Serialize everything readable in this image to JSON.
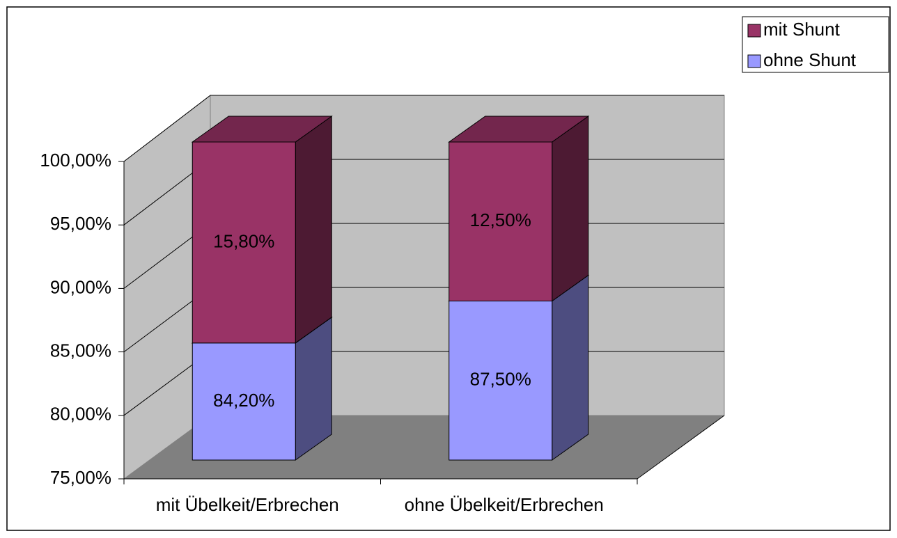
{
  "chart_data": {
    "type": "bar3d_stacked",
    "categories": [
      "mit Übelkeit/Erbrechen",
      "ohne Übelkeit/Erbrechen"
    ],
    "series": [
      {
        "name": "ohne Shunt",
        "color": "#9999ff",
        "values": [
          84.2,
          87.5
        ],
        "value_labels": [
          "84,20%",
          "87,50%"
        ]
      },
      {
        "name": "mit Shunt",
        "color": "#993366",
        "values": [
          15.8,
          12.5
        ],
        "value_labels": [
          "15,80%",
          "12,50%"
        ]
      }
    ],
    "ylim": [
      75,
      100
    ],
    "yticks": [
      {
        "value": 75,
        "label": "75,00%"
      },
      {
        "value": 80,
        "label": "80,00%"
      },
      {
        "value": 85,
        "label": "85,00%"
      },
      {
        "value": 90,
        "label": "90,00%"
      },
      {
        "value": 95,
        "label": "95,00%"
      },
      {
        "value": 100,
        "label": "100,00%"
      }
    ],
    "grid": true,
    "legend": "top-right"
  }
}
